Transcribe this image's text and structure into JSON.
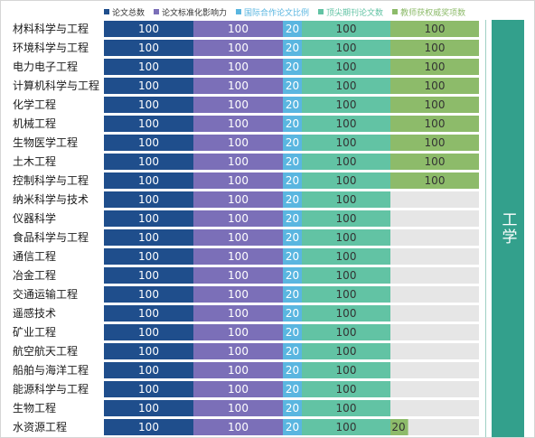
{
  "legend": [
    {
      "label": "论文总数",
      "color": "#1f4e8c"
    },
    {
      "label": "论文标准化影响力",
      "color": "#7b6fb8"
    },
    {
      "label": "国际合作论文比例",
      "color": "#5ab6e0"
    },
    {
      "label": "顶尖期刊论文数",
      "color": "#62c3a4"
    },
    {
      "label": "教师获权威奖项数",
      "color": "#8dbb6a"
    }
  ],
  "group_label": "工学",
  "colors": {
    "remainder": "#e6e6e6",
    "group_band": "#33a08c"
  },
  "chart_data": {
    "type": "bar",
    "stacked": true,
    "orientation": "horizontal",
    "categories": [
      "材料科学与工程",
      "环境科学与工程",
      "电力电子工程",
      "计算机科学与工程",
      "化学工程",
      "机械工程",
      "生物医学工程",
      "土木工程",
      "控制科学与工程",
      "纳米科学与技术",
      "仪器科学",
      "食品科学与工程",
      "通信工程",
      "冶金工程",
      "交通运输工程",
      "遥感技术",
      "矿业工程",
      "航空航天工程",
      "船舶与海洋工程",
      "能源科学与工程",
      "生物工程",
      "水资源工程"
    ],
    "series": [
      {
        "name": "论文总数",
        "values": [
          100,
          100,
          100,
          100,
          100,
          100,
          100,
          100,
          100,
          100,
          100,
          100,
          100,
          100,
          100,
          100,
          100,
          100,
          100,
          100,
          100,
          100
        ]
      },
      {
        "name": "论文标准化影响力",
        "values": [
          100,
          100,
          100,
          100,
          100,
          100,
          100,
          100,
          100,
          100,
          100,
          100,
          100,
          100,
          100,
          100,
          100,
          100,
          100,
          100,
          100,
          100
        ]
      },
      {
        "name": "国际合作论文比例",
        "values": [
          20,
          20,
          20,
          20,
          20,
          20,
          20,
          20,
          20,
          20,
          20,
          20,
          20,
          20,
          20,
          20,
          20,
          20,
          20,
          20,
          20,
          20
        ]
      },
      {
        "name": "顶尖期刊论文数",
        "values": [
          100,
          100,
          100,
          100,
          100,
          100,
          100,
          100,
          100,
          100,
          100,
          100,
          100,
          100,
          100,
          100,
          100,
          100,
          100,
          100,
          100,
          100
        ]
      },
      {
        "name": "教师获权威奖项数",
        "values": [
          100,
          100,
          100,
          100,
          100,
          100,
          100,
          100,
          100,
          null,
          null,
          null,
          null,
          null,
          null,
          null,
          null,
          null,
          null,
          null,
          null,
          20
        ]
      }
    ],
    "max_totals": [
      100,
      100,
      20,
      100,
      100
    ]
  }
}
